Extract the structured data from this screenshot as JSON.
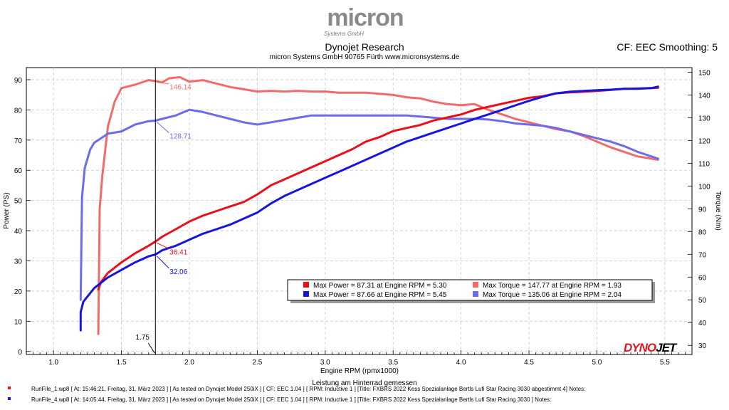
{
  "header": {
    "logo_text": "micron",
    "logo_subtext": "Systems GmbH",
    "title": "Dynojet Research",
    "subtitle": "micron Systems GmbH  90765 Fürth www.micronsystems.de",
    "smoothing": "CF: EEC Smoothing: 5"
  },
  "brand": {
    "dyno": "DYNO",
    "jet": "JET"
  },
  "colors": {
    "red": "#e8101a",
    "blue": "#1515e0",
    "light_red": "#f26b6b",
    "light_blue": "#6b6bec"
  },
  "chart_data": {
    "type": "line",
    "xlabel": "Engine RPM (rpmx1000)",
    "xlabel2": "Leistung am Hinterrad gemessen",
    "ylabel_left": "Power (PS)",
    "ylabel_right": "Torque (Nm)",
    "xlim": [
      0.8,
      5.7
    ],
    "ylim_left": [
      -1,
      94
    ],
    "ylim_right": [
      26,
      152
    ],
    "x_ticks": [
      "1.0",
      "1.5",
      "2.0",
      "2.5",
      "3.0",
      "3.5",
      "4.0",
      "4.5",
      "5.0",
      "5.5"
    ],
    "y_ticks_left": [
      "0",
      "10",
      "20",
      "30",
      "40",
      "50",
      "60",
      "70",
      "80",
      "90"
    ],
    "y_ticks_right": [
      "30",
      "40",
      "50",
      "60",
      "70",
      "80",
      "90",
      "100",
      "110",
      "120",
      "130",
      "140",
      "150"
    ],
    "grid": true,
    "cursor": {
      "x": 1.75,
      "label": "1.75"
    },
    "cursor_values": [
      {
        "value": "146.14",
        "axis": "right",
        "y": 146.14,
        "color": "#f26b6b"
      },
      {
        "value": "128.71",
        "axis": "right",
        "y": 128.71,
        "color": "#6b6bec"
      },
      {
        "value": "36.41",
        "axis": "left",
        "y": 36.41,
        "color": "#e8101a"
      },
      {
        "value": "32.06",
        "axis": "left",
        "y": 32.06,
        "color": "#1515e0"
      }
    ],
    "legend": [
      {
        "text": "Max Power = 87.31 at Engine RPM = 5.30",
        "color": "#e8101a"
      },
      {
        "text": "Max Torque = 147.77 at Engine RPM = 1.93",
        "color": "#f26b6b"
      },
      {
        "text": "Max Power = 87.66 at Engine RPM = 5.45",
        "color": "#1515e0"
      },
      {
        "text": "Max Torque = 135.06 at Engine RPM = 2.04",
        "color": "#6b6bec"
      }
    ],
    "series": [
      {
        "axis": "left",
        "color": "#e8101a",
        "x": [
          1.33,
          1.35,
          1.4,
          1.5,
          1.6,
          1.7,
          1.75,
          1.8,
          1.9,
          2.0,
          2.1,
          2.2,
          2.3,
          2.4,
          2.5,
          2.6,
          2.7,
          2.8,
          2.9,
          3.0,
          3.1,
          3.2,
          3.3,
          3.4,
          3.5,
          3.6,
          3.7,
          3.8,
          3.9,
          4.0,
          4.1,
          4.2,
          4.3,
          4.4,
          4.5,
          4.6,
          4.7,
          4.8,
          4.9,
          5.0,
          5.1,
          5.2,
          5.3,
          5.4,
          5.45
        ],
        "y": [
          20.5,
          23,
          26,
          29.5,
          32.5,
          35,
          36.4,
          38,
          40.5,
          43,
          45,
          46.5,
          48,
          49.5,
          52,
          55,
          57,
          59,
          61,
          63,
          65,
          67,
          69.5,
          71,
          73,
          74,
          75,
          76.5,
          77.5,
          78.5,
          80,
          81,
          82,
          83,
          84,
          84.5,
          85.5,
          85.8,
          86,
          86.3,
          86.6,
          87,
          87.1,
          87.2,
          87.3
        ]
      },
      {
        "axis": "left",
        "color": "#1515e0",
        "x": [
          1.2,
          1.2,
          1.22,
          1.3,
          1.4,
          1.5,
          1.6,
          1.7,
          1.75,
          1.8,
          1.9,
          2.0,
          2.1,
          2.2,
          2.3,
          2.4,
          2.5,
          2.6,
          2.7,
          2.8,
          2.9,
          3.0,
          3.1,
          3.2,
          3.3,
          3.4,
          3.5,
          3.6,
          3.7,
          3.8,
          3.9,
          4.0,
          4.1,
          4.2,
          4.3,
          4.4,
          4.5,
          4.6,
          4.7,
          4.8,
          4.9,
          5.0,
          5.1,
          5.2,
          5.3,
          5.4,
          5.45
        ],
        "y": [
          7,
          13,
          16.5,
          21,
          24.5,
          27,
          29.5,
          31.5,
          32.1,
          33.5,
          35,
          37,
          39,
          40.5,
          42,
          44,
          46,
          49,
          51.5,
          53.5,
          55.5,
          57.5,
          59.5,
          61.5,
          63.5,
          65.5,
          67.5,
          69.5,
          71,
          72.5,
          74,
          75.5,
          77,
          78.5,
          80,
          81.5,
          83,
          84.3,
          85.5,
          86,
          86.3,
          86.5,
          86.7,
          87,
          87,
          87.2,
          87.7
        ]
      },
      {
        "axis": "right",
        "color": "#f26b6b",
        "x": [
          1.33,
          1.34,
          1.36,
          1.4,
          1.45,
          1.5,
          1.6,
          1.7,
          1.75,
          1.8,
          1.85,
          1.93,
          2.0,
          2.1,
          2.2,
          2.3,
          2.4,
          2.5,
          2.6,
          2.7,
          2.8,
          2.9,
          3.0,
          3.1,
          3.2,
          3.3,
          3.4,
          3.5,
          3.6,
          3.7,
          3.8,
          3.9,
          4.0,
          4.1,
          4.2,
          4.3,
          4.4,
          4.5,
          4.6,
          4.7,
          4.8,
          4.9,
          5.0,
          5.1,
          5.2,
          5.3,
          5.4,
          5.45
        ],
        "y": [
          35,
          90,
          105,
          126,
          137,
          143,
          144.5,
          146.5,
          146.1,
          145.5,
          147.3,
          147.8,
          145.8,
          146.5,
          145,
          143.5,
          142.5,
          141.5,
          141.8,
          141.5,
          141.8,
          141.5,
          141.5,
          141,
          141,
          141,
          140.5,
          140,
          139,
          138.5,
          137,
          136,
          135.5,
          136,
          133.5,
          131.5,
          129.5,
          128,
          126.5,
          125,
          124,
          122,
          119.5,
          117,
          115,
          113,
          112,
          111.5
        ]
      },
      {
        "axis": "right",
        "color": "#6b6bec",
        "x": [
          1.2,
          1.21,
          1.23,
          1.27,
          1.3,
          1.35,
          1.4,
          1.5,
          1.6,
          1.7,
          1.75,
          1.8,
          1.9,
          2.0,
          2.1,
          2.2,
          2.3,
          2.4,
          2.5,
          2.6,
          2.7,
          2.8,
          2.9,
          3.0,
          3.1,
          3.2,
          3.3,
          3.4,
          3.5,
          3.6,
          3.7,
          3.8,
          3.9,
          4.0,
          4.1,
          4.2,
          4.3,
          4.4,
          4.5,
          4.6,
          4.7,
          4.8,
          4.9,
          5.0,
          5.1,
          5.2,
          5.3,
          5.4,
          5.45
        ],
        "y": [
          50,
          95,
          108,
          116,
          119,
          121,
          123,
          124,
          127,
          128.5,
          128.7,
          129.5,
          131,
          133.5,
          132.5,
          131,
          129.5,
          128,
          127,
          128,
          129,
          130,
          131,
          131,
          131,
          131,
          131,
          131,
          131,
          131,
          130.5,
          130,
          129.5,
          129.5,
          129.5,
          129.2,
          128.5,
          127.5,
          127,
          126.5,
          125.5,
          124,
          122.5,
          121,
          119.5,
          117.5,
          115,
          113,
          112
        ]
      }
    ]
  },
  "footer": {
    "run1": "RunFile_1.wp8  [ At:  15:46:21, Freitag, 31. März 2023 ] [ As tested on Dynojet Model 250iX ] [ CF: EEC 1.04 ] [ RPM: Inductive 1 ] [Title: FXBRS 2022 Kess Spezialanlage Bertls Lufi Star Racing 3030 abgestimmt 4]  Notes:",
    "run2": "RunFile_4.wp8  [ At:  14:05:44, Freitag, 31. März 2023 ] [ As tested on Dynojet Model 250iX ] [ CF: EEC 1.04 ] [ RPM: Inductive 1 ] [Title: FXBRS 2022 Kess Spezialanlage Bertls Lufi Star Racing 3030 ]  Notes:"
  }
}
